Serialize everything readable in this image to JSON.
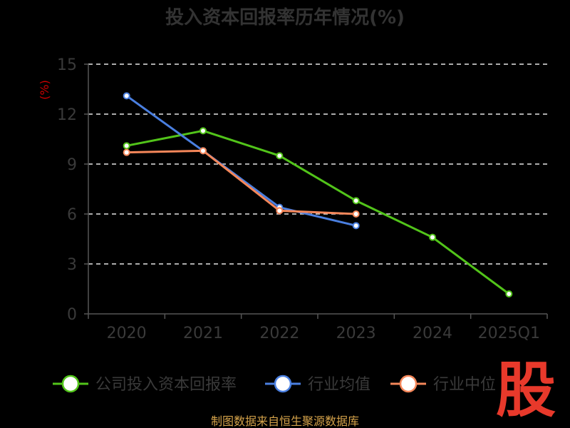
{
  "chart_data": {
    "type": "line",
    "title": "投入资本回报率历年情况(%)",
    "ylabel": "(%)",
    "ylim": [
      0,
      15
    ],
    "yticks": [
      0,
      3,
      6,
      9,
      12,
      15
    ],
    "categories": [
      "2020",
      "2021",
      "2022",
      "2023",
      "2024",
      "2025Q1"
    ],
    "grid": true,
    "legend_position": "bottom",
    "series": [
      {
        "name": "公司投入资本回报率",
        "color": "#52c41a",
        "values": [
          10.1,
          11.0,
          9.5,
          6.8,
          4.6,
          1.2
        ]
      },
      {
        "name": "行业均值",
        "color": "#4a7fe0",
        "values": [
          13.1,
          9.8,
          6.4,
          5.3,
          null,
          null
        ]
      },
      {
        "name": "行业中位",
        "color": "#f5875a",
        "values": [
          9.7,
          9.8,
          6.2,
          6.0,
          null,
          null
        ]
      }
    ]
  },
  "footer": {
    "source": "制图数据来自恒生聚源数据库"
  },
  "watermark": {
    "text": "股"
  }
}
